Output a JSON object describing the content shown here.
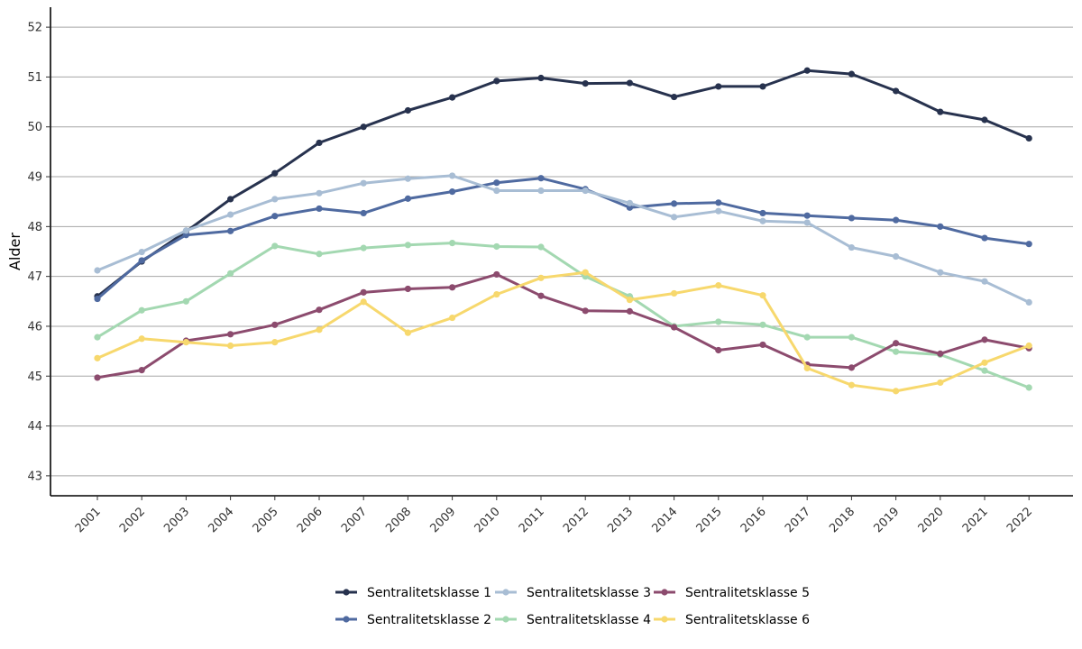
{
  "chart_data": {
    "type": "line",
    "title": "",
    "xlabel": "",
    "ylabel": "Alder",
    "ylim": [
      42.6,
      52.4
    ],
    "yticks": [
      43,
      44,
      45,
      46,
      47,
      48,
      49,
      50,
      51,
      52
    ],
    "x": [
      "2001",
      "2002",
      "2003",
      "2004",
      "2005",
      "2006",
      "2007",
      "2008",
      "2009",
      "2010",
      "2011",
      "2012",
      "2013",
      "2014",
      "2015",
      "2016",
      "2017",
      "2018",
      "2019",
      "2020",
      "2021",
      "2022"
    ],
    "grid": true,
    "legend_position": "bottom",
    "series": [
      {
        "name": "Sentralitetsklasse 1",
        "color": "#27324e",
        "values": [
          46.6,
          47.3,
          47.9,
          48.55,
          49.07,
          49.68,
          50.0,
          50.33,
          50.59,
          50.92,
          50.98,
          50.87,
          50.88,
          50.6,
          50.81,
          50.81,
          51.13,
          51.06,
          50.72,
          50.3,
          50.14,
          49.77
        ]
      },
      {
        "name": "Sentralitetsklasse 2",
        "color": "#4f6aa0",
        "values": [
          46.55,
          47.32,
          47.83,
          47.91,
          48.21,
          48.36,
          48.27,
          48.56,
          48.7,
          48.88,
          48.97,
          48.75,
          48.38,
          48.46,
          48.48,
          48.27,
          48.22,
          48.17,
          48.13,
          48.0,
          47.77,
          47.65
        ]
      },
      {
        "name": "Sentralitetsklasse 3",
        "color": "#a8bdd4",
        "values": [
          47.12,
          47.49,
          47.92,
          48.24,
          48.55,
          48.67,
          48.87,
          48.96,
          49.02,
          48.72,
          48.72,
          48.72,
          48.47,
          48.19,
          48.31,
          48.11,
          48.08,
          47.58,
          47.4,
          47.08,
          46.9,
          46.48
        ]
      },
      {
        "name": "Sentralitetsklasse 4",
        "color": "#a3d8b1",
        "values": [
          45.78,
          46.32,
          46.5,
          47.06,
          47.61,
          47.45,
          47.57,
          47.63,
          47.67,
          47.6,
          47.59,
          47.0,
          46.6,
          46.0,
          46.09,
          46.03,
          45.78,
          45.78,
          45.49,
          45.43,
          45.11,
          44.77
        ]
      },
      {
        "name": "Sentralitetsklasse 5",
        "color": "#8c4b6e",
        "values": [
          44.97,
          45.12,
          45.71,
          45.84,
          46.03,
          46.33,
          46.68,
          46.75,
          46.78,
          47.04,
          46.61,
          46.31,
          46.3,
          45.98,
          45.52,
          45.63,
          45.23,
          45.17,
          45.66,
          45.45,
          45.73,
          45.56
        ]
      },
      {
        "name": "Sentralitetsklasse 6",
        "color": "#f7d86d",
        "values": [
          45.36,
          45.75,
          45.68,
          45.61,
          45.68,
          45.93,
          46.49,
          45.87,
          46.17,
          46.64,
          46.97,
          47.08,
          46.53,
          46.66,
          46.82,
          46.62,
          45.16,
          44.82,
          44.7,
          44.87,
          45.27,
          45.61
        ]
      }
    ]
  }
}
